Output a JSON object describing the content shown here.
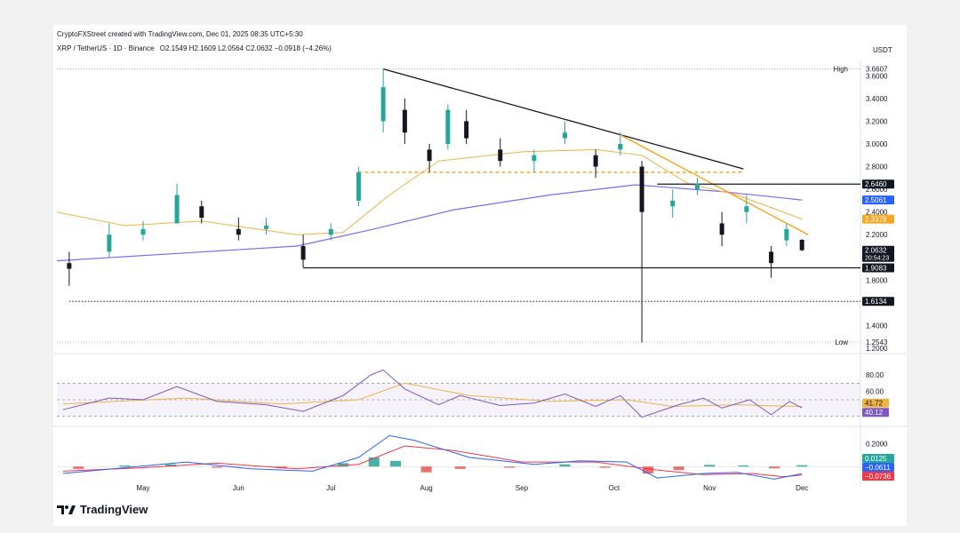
{
  "header": {
    "credit": "CryptoFXStreet created with TradingView.com, Dec 01, 2025 08:35 UTC+5:30",
    "symbol": "XRP / TetherUS · 1D · Binance",
    "ohlc": "O2.1549 H2.1609 L2.0564 C2.0632 −0.0918 (−4.26%)",
    "currency": "USDT"
  },
  "brand": {
    "name": "TradingView"
  },
  "colors": {
    "up": "#26a69a",
    "down": "#131722",
    "ema_short": "#f0b247",
    "ema_long": "#7b6cf0",
    "trend_orange": "#f7a823",
    "support": "#131722",
    "rsi": "#7e57c2",
    "macd": "#2962ff",
    "macd_signal": "#f23645",
    "hist_up": "#26a69a",
    "hist_down": "#ef5350"
  },
  "chart_data": [
    {
      "type": "candlestick",
      "y_axis_ticks": [
        "3.6000",
        "3.4000",
        "3.2000",
        "3.0000",
        "2.8000",
        "2.6000",
        "2.4000",
        "2.2000",
        "1.8000",
        "1.4000",
        "1.2000"
      ],
      "x_axis_labels": [
        "May",
        "Jun",
        "Jul",
        "Aug",
        "Sep",
        "Oct",
        "Nov",
        "Dec"
      ],
      "ylim": [
        1.2,
        3.72
      ],
      "high_label": "High",
      "high_value": "3.6607",
      "low_label": "Low",
      "low_value": "1.2543",
      "price_labels": [
        {
          "value": "2.6460",
          "y": 2.646,
          "bg": "#131722"
        },
        {
          "value": "2.5061",
          "y": 2.506,
          "bg": "#2962ff"
        },
        {
          "value": "2.3378",
          "y": 2.338,
          "bg": "#f7a823"
        },
        {
          "value": "2.0632",
          "y": 2.063,
          "bg": "#131722",
          "sub": "20:54:23"
        },
        {
          "value": "1.9083",
          "y": 1.908,
          "bg": "#131722"
        },
        {
          "value": "1.6134",
          "y": 1.613,
          "bg": "#131722"
        }
      ],
      "series": [
        {
          "name": "",
          "kind": "ohlc",
          "points": [
            [
              "2025-04-07",
              1.95,
              2.05,
              1.75,
              1.9
            ],
            [
              "2025-04-20",
              2.05,
              2.3,
              2.0,
              2.2
            ],
            [
              "2025-05-01",
              2.2,
              2.32,
              2.15,
              2.25
            ],
            [
              "2025-05-12",
              2.3,
              2.65,
              2.3,
              2.55
            ],
            [
              "2025-05-20",
              2.45,
              2.5,
              2.3,
              2.35
            ],
            [
              "2025-06-01",
              2.25,
              2.35,
              2.15,
              2.2
            ],
            [
              "2025-06-10",
              2.25,
              2.35,
              2.2,
              2.28
            ],
            [
              "2025-06-22",
              2.1,
              2.2,
              1.91,
              1.98
            ],
            [
              "2025-07-01",
              2.2,
              2.3,
              2.15,
              2.25
            ],
            [
              "2025-07-10",
              2.5,
              2.8,
              2.45,
              2.75
            ],
            [
              "2025-07-18",
              3.2,
              3.66,
              3.1,
              3.5
            ],
            [
              "2025-07-25",
              3.3,
              3.4,
              3.0,
              3.1
            ],
            [
              "2025-08-02",
              2.95,
              3.0,
              2.75,
              2.85
            ],
            [
              "2025-08-08",
              3.0,
              3.35,
              2.95,
              3.3
            ],
            [
              "2025-08-14",
              3.2,
              3.3,
              3.0,
              3.05
            ],
            [
              "2025-08-25",
              2.95,
              3.05,
              2.8,
              2.85
            ],
            [
              "2025-09-05",
              2.85,
              2.95,
              2.75,
              2.9
            ],
            [
              "2025-09-15",
              3.05,
              3.2,
              3.0,
              3.1
            ],
            [
              "2025-09-25",
              2.9,
              2.95,
              2.7,
              2.8
            ],
            [
              "2025-10-03",
              2.95,
              3.1,
              2.9,
              3.0
            ],
            [
              "2025-10-10",
              2.8,
              2.85,
              1.25,
              2.4
            ],
            [
              "2025-10-20",
              2.45,
              2.6,
              2.35,
              2.5
            ],
            [
              "2025-10-28",
              2.6,
              2.7,
              2.55,
              2.65
            ],
            [
              "2025-11-05",
              2.3,
              2.4,
              2.1,
              2.2
            ],
            [
              "2025-11-13",
              2.4,
              2.55,
              2.3,
              2.45
            ],
            [
              "2025-11-21",
              2.05,
              2.1,
              1.82,
              1.95
            ],
            [
              "2025-11-26",
              2.15,
              2.3,
              2.1,
              2.25
            ],
            [
              "2025-12-01",
              2.1549,
              2.1609,
              2.0564,
              2.0632
            ]
          ]
        }
      ]
    },
    {
      "type": "line",
      "y_axis_ticks": [
        "80.00",
        "60.00"
      ],
      "ylim": [
        20,
        95
      ],
      "value_labels": [
        {
          "value": "41.72",
          "y": 41.72,
          "bg": "#f0b247"
        },
        {
          "value": "40.12",
          "y": 40.12,
          "bg": "#7e57c2"
        }
      ]
    },
    {
      "type": "bar",
      "y_axis_ticks": [
        "0.2000"
      ],
      "ylim": [
        -0.13,
        0.32
      ],
      "value_labels": [
        {
          "value": "0.0125",
          "y": 0.0125,
          "bg": "#26a69a"
        },
        {
          "value": "−0.0611",
          "y": -0.0611,
          "bg": "#2962ff"
        },
        {
          "value": "−0.0736",
          "y": -0.0736,
          "bg": "#f23645"
        }
      ]
    }
  ]
}
